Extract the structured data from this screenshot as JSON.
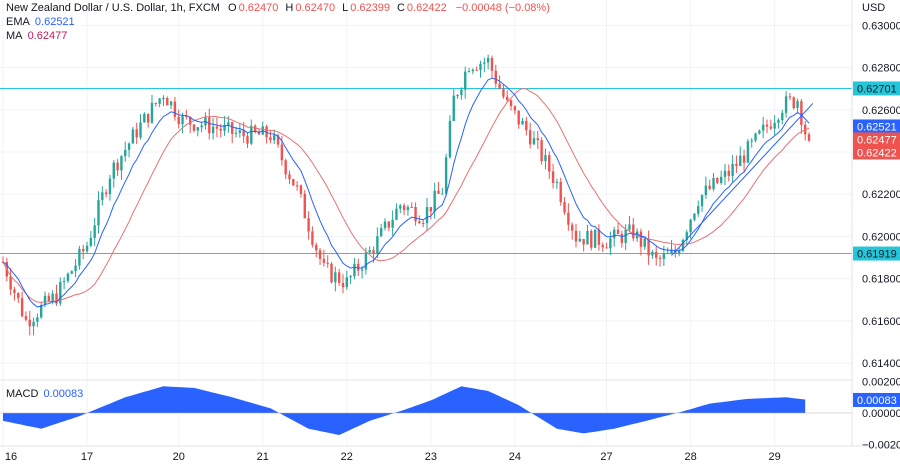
{
  "header": {
    "instrument": "New Zealand Dollar / U.S. Dollar, 1h, FXCM",
    "ohlc": [
      {
        "label": "O",
        "value": "0.62470"
      },
      {
        "label": "H",
        "value": "0.62470"
      },
      {
        "label": "L",
        "value": "0.62399"
      },
      {
        "label": "C",
        "value": "0.62422"
      },
      {
        "label": "",
        "value": "−0.00048 (−0.08%)"
      }
    ],
    "ema_label": "EMA",
    "ema_value": "0.62521",
    "ma_label": "MA",
    "ma_value": "0.62477",
    "macd_label": "MACD",
    "macd_value": "0.00083",
    "currency": "USD"
  },
  "colors": {
    "up": "#26a69a",
    "down": "#ef5350",
    "ema": "#2962ff",
    "ma": "#e57373",
    "hline": "#26c6da",
    "macd_fill": "#2962ff",
    "grid": "#f0f3fa",
    "trend": "#2962ff"
  },
  "chart_data": [
    {
      "type": "candlestick",
      "title": "New Zealand Dollar / U.S. Dollar, 1h, FXCM",
      "ylabel": "USD",
      "ylim": [
        0.6132,
        0.6312
      ],
      "y_ticks": [
        "0.63000",
        "0.62800",
        "0.62600",
        "0.62400",
        "0.62200",
        "0.62000",
        "0.61800",
        "0.61600",
        "0.61400"
      ],
      "x_ticks": [
        "16",
        "17",
        "20",
        "21",
        "22",
        "23",
        "24",
        "27",
        "28",
        "29"
      ],
      "x_tick_index": [
        0,
        22,
        46,
        68,
        90,
        112,
        134,
        158,
        180,
        202
      ],
      "horizontal_lines": [
        0.62701,
        0.61919
      ],
      "price_tags": [
        {
          "label": "0.62701",
          "value": 0.62701,
          "color": "#26c6da"
        },
        {
          "label": "0.62521",
          "value": 0.62521,
          "color": "#2962ff"
        },
        {
          "label": "0.62477",
          "value": 0.62477,
          "color": "#ef5350"
        },
        {
          "label": "0.62422",
          "value": 0.62422,
          "color": "#ef5350"
        },
        {
          "label": "0.61919",
          "value": 0.61919,
          "color": "#26c6da"
        }
      ],
      "trendline": {
        "from": [
          175,
          0.6191
        ],
        "to": [
          212,
          0.6263
        ]
      },
      "anchors": [
        [
          0,
          0.6188
        ],
        [
          6,
          0.616
        ],
        [
          14,
          0.6172
        ],
        [
          22,
          0.6196
        ],
        [
          28,
          0.623
        ],
        [
          35,
          0.625
        ],
        [
          42,
          0.6268
        ],
        [
          47,
          0.6255
        ],
        [
          55,
          0.6252
        ],
        [
          62,
          0.6248
        ],
        [
          70,
          0.6248
        ],
        [
          77,
          0.6222
        ],
        [
          84,
          0.6184
        ],
        [
          90,
          0.6178
        ],
        [
          97,
          0.6195
        ],
        [
          104,
          0.6215
        ],
        [
          110,
          0.621
        ],
        [
          115,
          0.6222
        ],
        [
          118,
          0.6265
        ],
        [
          122,
          0.6282
        ],
        [
          127,
          0.6283
        ],
        [
          132,
          0.6262
        ],
        [
          138,
          0.6248
        ],
        [
          145,
          0.6225
        ],
        [
          150,
          0.62
        ],
        [
          158,
          0.6198
        ],
        [
          165,
          0.6202
        ],
        [
          171,
          0.6188
        ],
        [
          176,
          0.6192
        ],
        [
          182,
          0.6218
        ],
        [
          190,
          0.623
        ],
        [
          197,
          0.6245
        ],
        [
          204,
          0.6262
        ],
        [
          208,
          0.6265
        ],
        [
          211,
          0.6242
        ]
      ],
      "candle_count": 212,
      "ema_period": 9,
      "ma_period": 20
    },
    {
      "type": "area",
      "title": "MACD",
      "ylim": [
        -0.0021,
        0.0021
      ],
      "y_ticks": [
        "0.00200",
        "0.00000",
        "−0.00200"
      ],
      "current": 0.00083,
      "current_label": "0.00083",
      "anchors": [
        [
          0,
          -0.0005
        ],
        [
          10,
          -0.001
        ],
        [
          20,
          -0.0002
        ],
        [
          32,
          0.001
        ],
        [
          42,
          0.0017
        ],
        [
          50,
          0.0016
        ],
        [
          60,
          0.001
        ],
        [
          70,
          0.0003
        ],
        [
          80,
          -0.001
        ],
        [
          88,
          -0.0014
        ],
        [
          96,
          -0.0005
        ],
        [
          105,
          0.0002
        ],
        [
          112,
          0.0008
        ],
        [
          120,
          0.0017
        ],
        [
          127,
          0.0014
        ],
        [
          135,
          0.0005
        ],
        [
          145,
          -0.001
        ],
        [
          152,
          -0.0013
        ],
        [
          160,
          -0.001
        ],
        [
          170,
          -0.0004
        ],
        [
          178,
          0.0001
        ],
        [
          185,
          0.0006
        ],
        [
          195,
          0.0009
        ],
        [
          205,
          0.001
        ],
        [
          212,
          0.0008
        ]
      ]
    }
  ]
}
